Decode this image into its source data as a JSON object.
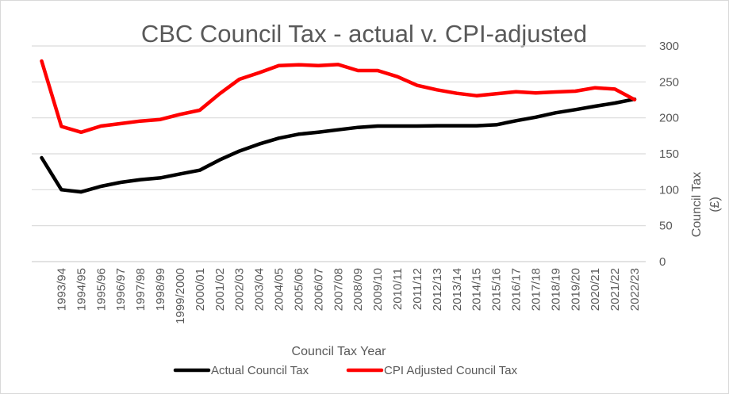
{
  "chart_data": {
    "type": "line",
    "title": "CBC Council Tax - actual v. CPI-adjusted",
    "xlabel": "Council Tax Year",
    "ylabel_lines": [
      "Council Tax",
      "(£)"
    ],
    "ylabel": "Council Tax (£)",
    "y_axis_side": "right",
    "ylim": [
      0,
      300
    ],
    "yticks": [
      0,
      50,
      100,
      150,
      200,
      250,
      300
    ],
    "ytick_labels": [
      "0",
      "50",
      "100",
      "150",
      "200",
      "250",
      "300"
    ],
    "grid": true,
    "legend_position": "bottom",
    "categories": [
      "",
      "1993/94",
      "1994/95",
      "1995/96",
      "1996/97",
      "1997/98",
      "1998/99",
      "1999/2000",
      "2000/01",
      "2001/02",
      "2002/03",
      "2003/04",
      "2004/05",
      "2005/06",
      "2006/07",
      "2007/08",
      "2008/09",
      "2009/10",
      "2010/11",
      "2011/12",
      "2012/13",
      "2013/14",
      "2014/15",
      "2015/16",
      "2016/17",
      "2017/18",
      "2018/19",
      "2019/20",
      "2020/21",
      "2021/22",
      "2022/23"
    ],
    "series": [
      {
        "name": "Actual Council Tax",
        "color": "#000000",
        "values": [
          144.5,
          100,
          97,
          104.8,
          110.3,
          114,
          116.5,
          122,
          127.2,
          141.5,
          153.7,
          163.6,
          171.7,
          177.2,
          180.1,
          183.4,
          186.7,
          188.6,
          188.6,
          188.6,
          189,
          189,
          189,
          190.4,
          196,
          201,
          207,
          211.4,
          216.2,
          220.6,
          226
        ]
      },
      {
        "name": "CPI Adjusted Council Tax",
        "color": "#ff0000",
        "values": [
          279,
          188,
          180,
          188.6,
          192,
          195.6,
          197.8,
          204.8,
          210.7,
          233.5,
          253.7,
          262.8,
          272.8,
          273.9,
          272.8,
          274.2,
          265.8,
          265.8,
          257.3,
          245.2,
          239,
          234.2,
          230.9,
          233.5,
          236.4,
          234.6,
          236,
          237.1,
          241.9,
          240,
          225.3
        ]
      }
    ],
    "colors": {
      "gridline": "#d9d9d9",
      "text": "#595959",
      "border": "#d9d9d9"
    }
  }
}
